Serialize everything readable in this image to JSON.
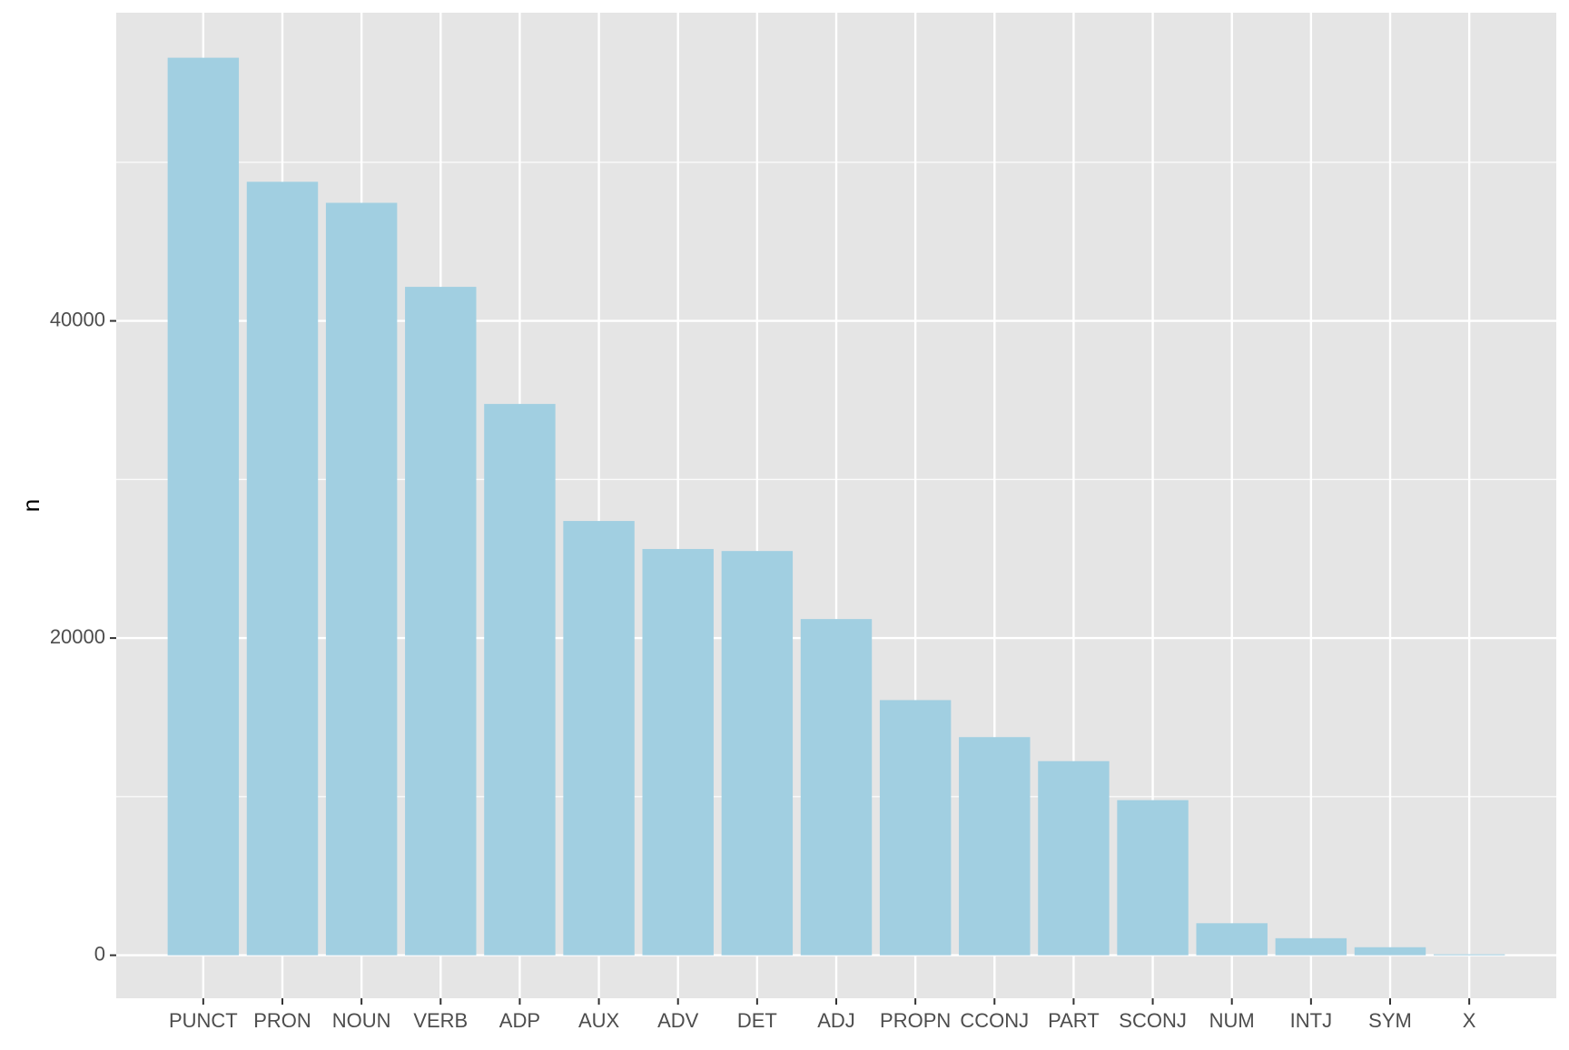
{
  "chart_data": {
    "type": "bar",
    "y_label": "n",
    "categories": [
      "PUNCT",
      "PRON",
      "NOUN",
      "VERB",
      "ADP",
      "AUX",
      "ADV",
      "DET",
      "ADJ",
      "PROPN",
      "CCONJ",
      "PART",
      "SCONJ",
      "NUM",
      "INTJ",
      "SYM",
      "X"
    ],
    "values": [
      56593,
      48770,
      47445,
      42145,
      34763,
      27382,
      25615,
      25489,
      21199,
      16088,
      13754,
      12240,
      9779,
      2019,
      1073,
      505,
      60
    ],
    "color": "#a1cfe1",
    "ylim": [
      -2713,
      59432
    ],
    "yticks": [
      0,
      20000,
      40000
    ],
    "y_minor_ticks": [
      10000,
      30000,
      50000
    ],
    "grid": true
  }
}
